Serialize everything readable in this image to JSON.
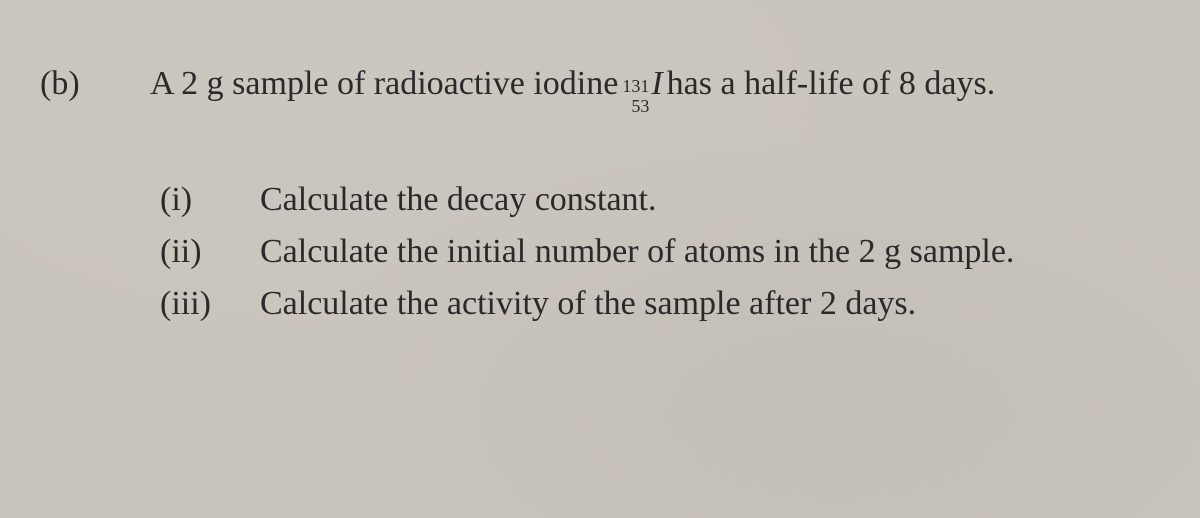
{
  "page": {
    "background_color": "#c9c4bc",
    "text_color": "#2a2a2a",
    "font_family": "Times New Roman",
    "base_fontsize_pt": 26
  },
  "question": {
    "part_label": "(b)",
    "intro_before": "A 2 g sample of radioactive iodine ",
    "isotope": {
      "mass_number": "131",
      "atomic_number": "53",
      "element": "I"
    },
    "intro_after": " has a half-life of 8 days.",
    "subparts": [
      {
        "label": "(i)",
        "text": "Calculate the decay constant."
      },
      {
        "label": "(ii)",
        "text": "Calculate the initial number of atoms in the 2 g sample."
      },
      {
        "label": "(iii)",
        "text": "Calculate the activity of the sample after 2 days."
      }
    ]
  }
}
